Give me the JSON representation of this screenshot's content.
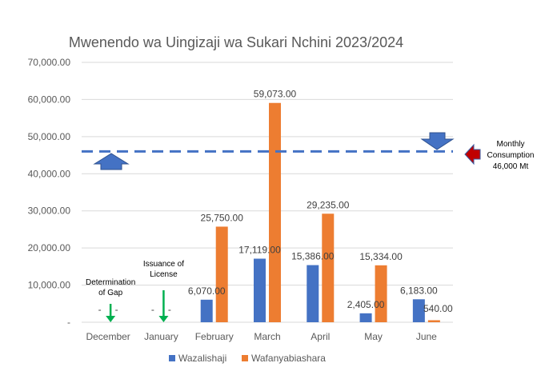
{
  "chart_data": {
    "type": "bar",
    "title": "Mwenendo wa Uingizaji wa Sukari Nchini 2023/2024",
    "categories": [
      "December",
      "January",
      "February",
      "March",
      "April",
      "May",
      "June"
    ],
    "series": [
      {
        "name": "Wazalishaji",
        "color": "#4472c4",
        "values": [
          0,
          0,
          6070,
          17119,
          15386,
          2405,
          6183
        ],
        "labels": [
          "-",
          "-",
          "6,070.00",
          "17,119.00",
          "15,386.00",
          "2,405.00",
          "6,183.00"
        ]
      },
      {
        "name": "Wafanyabiashara",
        "color": "#ed7d31",
        "values": [
          0,
          0,
          25750,
          59073,
          29235,
          15334,
          540
        ],
        "labels": [
          "-",
          "-",
          "25,750.00",
          "59,073.00",
          "29,235.00",
          "15,334.00",
          "540.00"
        ]
      }
    ],
    "ylim": [
      0,
      70000
    ],
    "yticks": [
      0,
      10000,
      20000,
      30000,
      40000,
      50000,
      60000,
      70000
    ],
    "ytick_labels": [
      "-",
      "10,000.00",
      "20,000.00",
      "30,000.00",
      "40,000.00",
      "50,000.00",
      "60,000.00",
      "70,000.00"
    ],
    "grid": true,
    "legend_position": "bottom",
    "reference_line": {
      "value": 46000,
      "color": "#4472c4",
      "style": "dashed",
      "label_lines": [
        "Monthly",
        "Consumption",
        "46,000 Mt"
      ]
    },
    "annotations": [
      {
        "category": "December",
        "lines": [
          "Determination",
          "of Gap"
        ],
        "arrow_color": "#00b050"
      },
      {
        "category": "January",
        "lines": [
          "Issuance of",
          "License"
        ],
        "arrow_color": "#00b050"
      }
    ],
    "marker_colors": {
      "blue_arrow": "#4472c4",
      "red_arrow": "#c00000"
    }
  }
}
